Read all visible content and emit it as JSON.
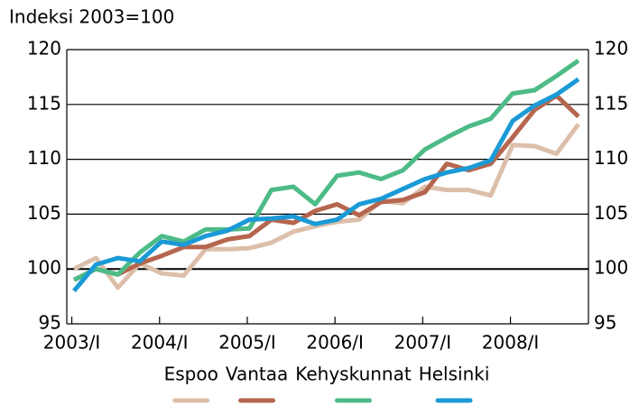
{
  "chart_data": {
    "type": "line",
    "ylabel": "Indeksi 2003=100",
    "categories": [
      "2003/I",
      null,
      null,
      null,
      "2004/I",
      null,
      null,
      null,
      "2005/I",
      null,
      null,
      null,
      "2006/I",
      null,
      null,
      null,
      "2007/I",
      null,
      null,
      null,
      "2008/I",
      null,
      null,
      null
    ],
    "series": [
      {
        "name": "Espoo",
        "color": "#dcbfaa",
        "values": [
          100,
          101,
          98.3,
          100.5,
          99.6,
          99.4,
          101.8,
          101.8,
          101.9,
          102.4,
          103.4,
          103.9,
          104.3,
          104.5,
          106.2,
          106.0,
          107.5,
          107.2,
          107.2,
          106.7,
          111.3,
          111.2,
          110.5,
          113.2
        ]
      },
      {
        "name": "Vantaa",
        "color": "#b5664e",
        "values": [
          99.0,
          100.0,
          99.5,
          100.5,
          101.2,
          102.0,
          102.0,
          102.7,
          103.0,
          104.5,
          104.2,
          105.3,
          105.9,
          104.9,
          106.1,
          106.3,
          107.0,
          109.6,
          109.0,
          109.6,
          112.0,
          114.5,
          115.8,
          113.9
        ]
      },
      {
        "name": "Kehyskunnat",
        "color": "#4dbb87",
        "values": [
          99.0,
          100.0,
          99.5,
          101.5,
          103.0,
          102.5,
          103.6,
          103.6,
          103.7,
          107.2,
          107.5,
          105.9,
          108.5,
          108.8,
          108.2,
          109.0,
          110.9,
          112.0,
          113.0,
          113.7,
          116.0,
          116.3,
          117.6,
          119.0
        ]
      },
      {
        "name": "Helsinki",
        "color": "#1a9ad6",
        "values": [
          98.0,
          100.4,
          101.0,
          100.7,
          102.5,
          102.2,
          103.0,
          103.5,
          104.5,
          104.6,
          104.8,
          104.1,
          104.5,
          105.9,
          106.4,
          107.3,
          108.2,
          108.8,
          109.2,
          109.9,
          113.5,
          114.9,
          115.9,
          117.3
        ]
      }
    ],
    "ylim": [
      95,
      120
    ],
    "yticks": [
      95,
      100,
      105,
      110,
      115,
      120
    ],
    "grid": true,
    "legend": "bottom"
  }
}
